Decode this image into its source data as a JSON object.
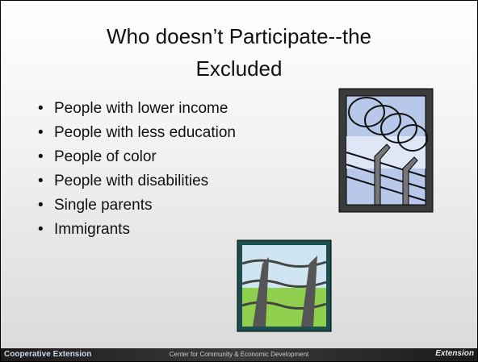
{
  "title": "Who doesn’t Participate--the Excluded",
  "bullets": [
    "People with lower income",
    "People with less education",
    "People of color",
    "People with disabilities",
    "Single parents",
    "Immigrants"
  ],
  "footer": {
    "left": "Cooperative Extension",
    "center": "Center for Community & Economic Development",
    "right": "Extension"
  }
}
